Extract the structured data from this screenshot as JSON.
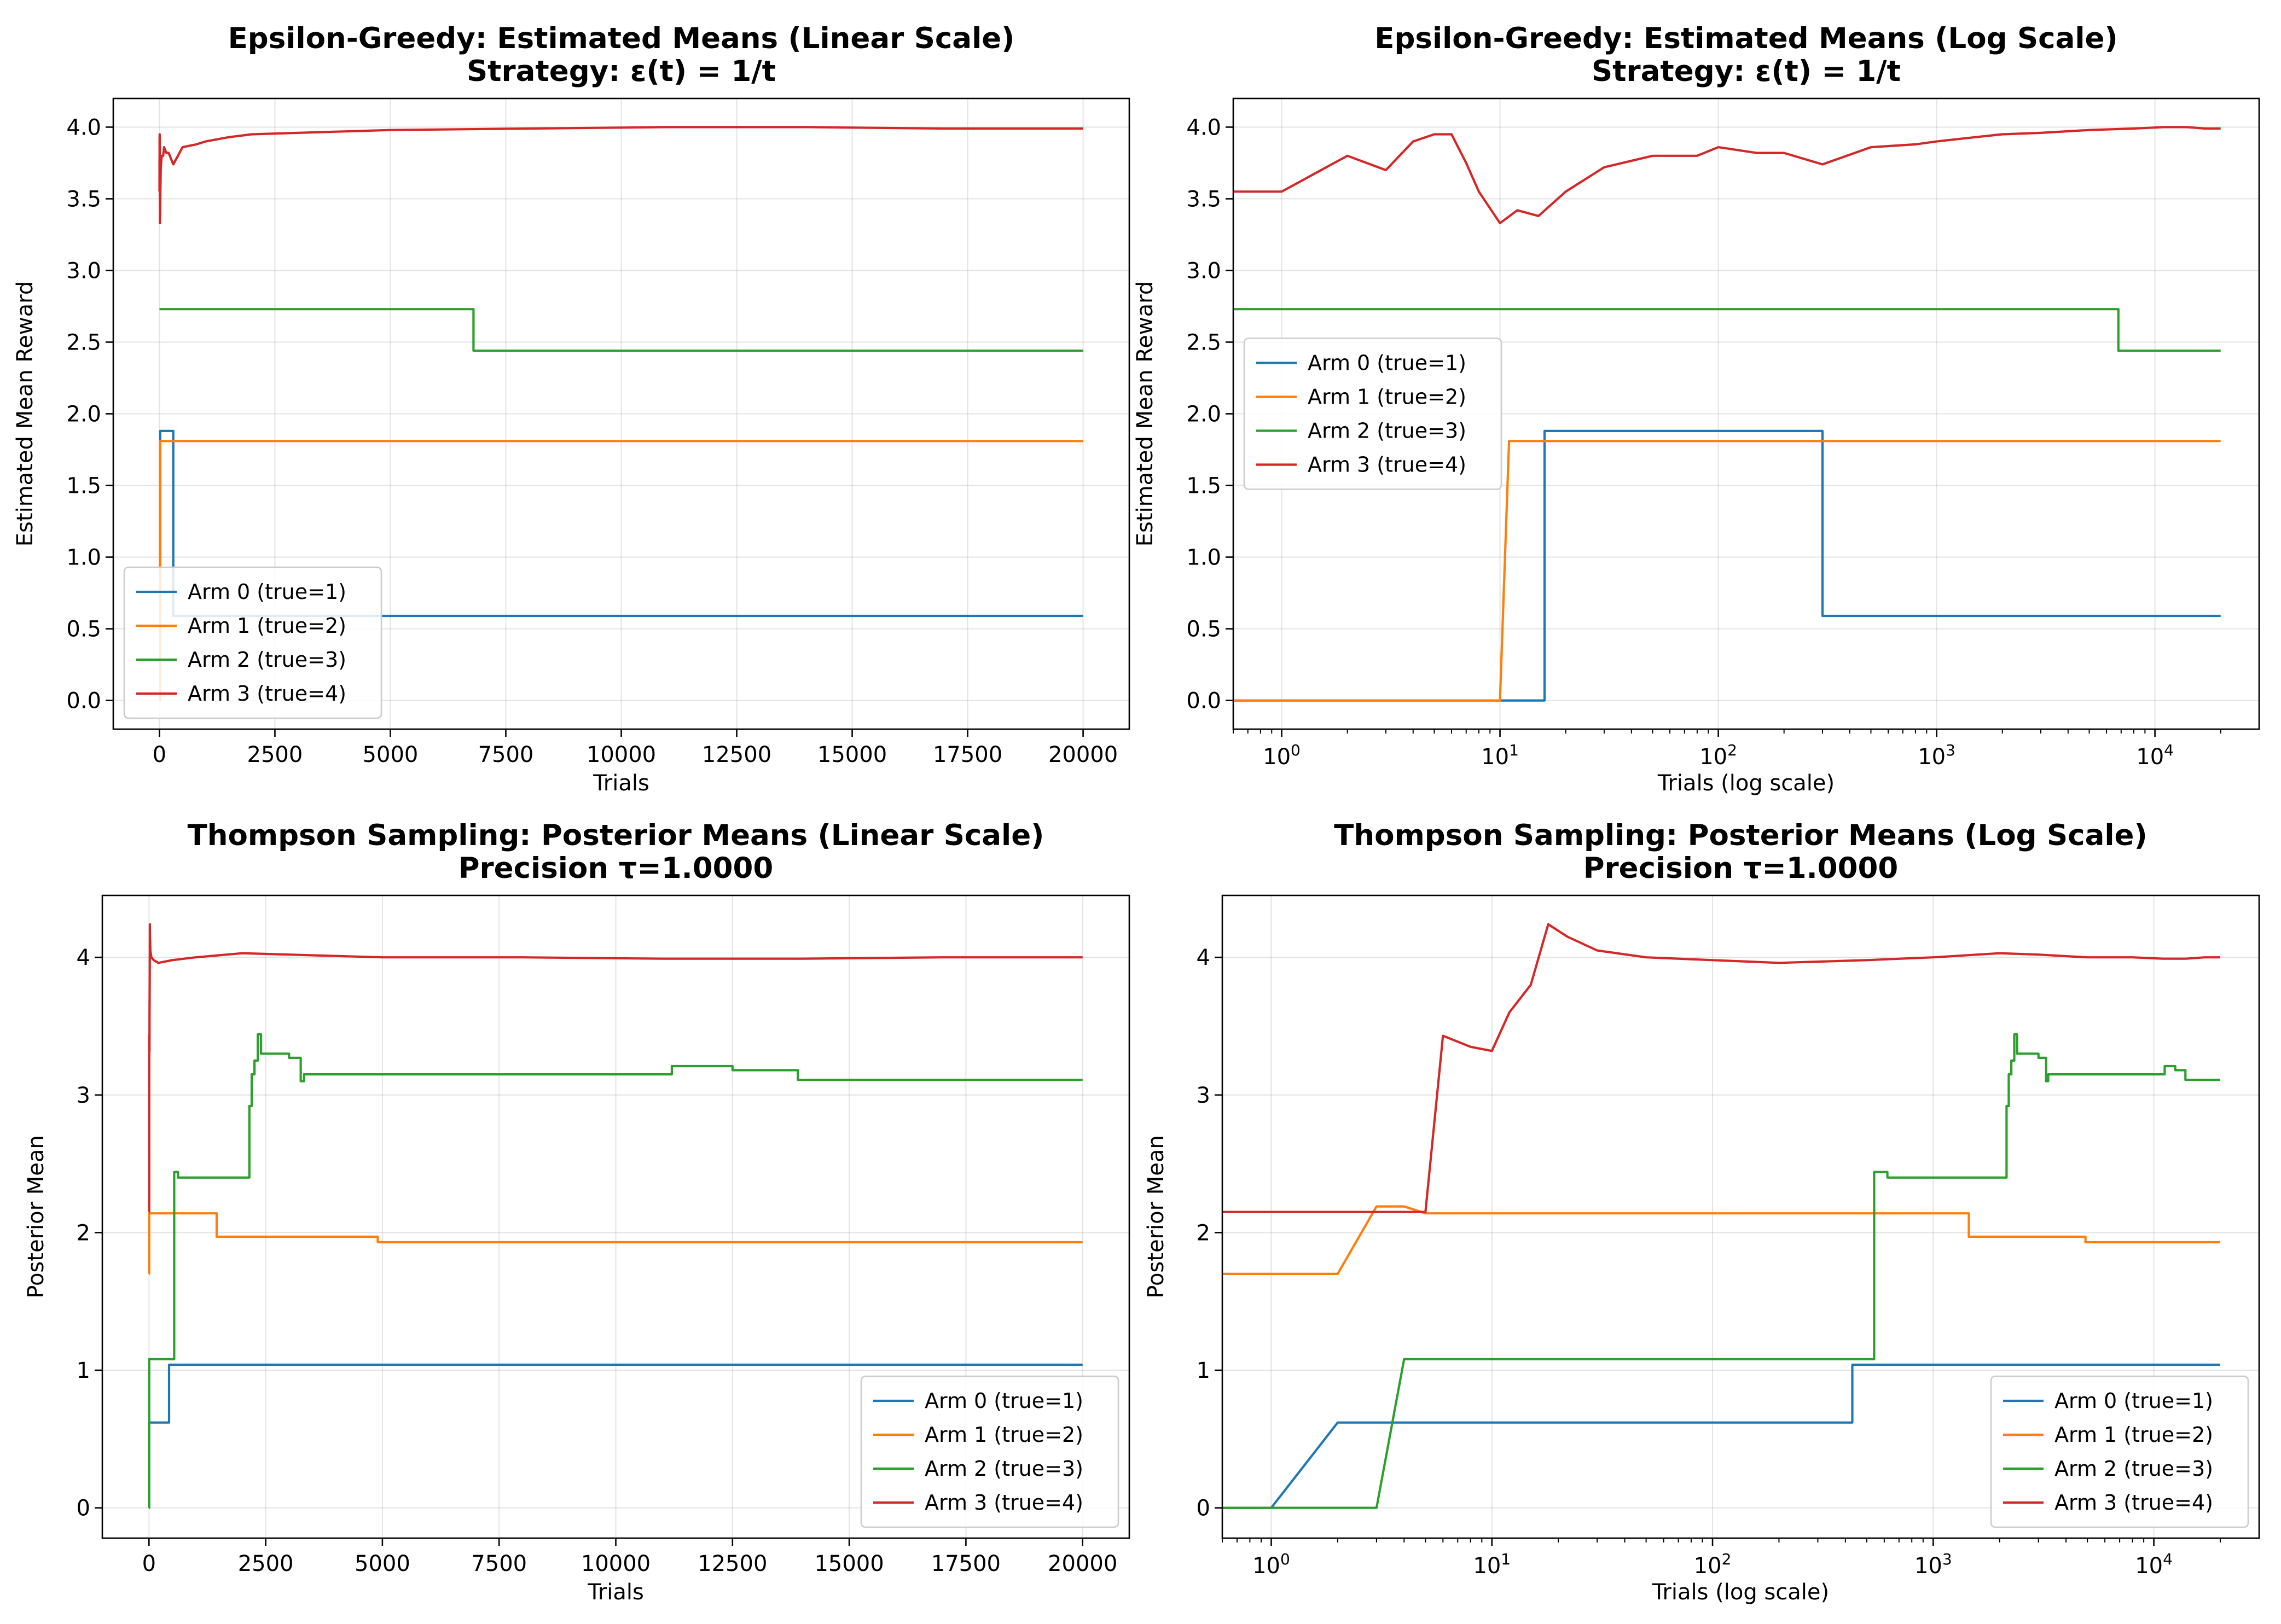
{
  "colors": {
    "arm0": "#1f77b4",
    "arm1": "#ff7f0e",
    "arm2": "#2ca02c",
    "arm3": "#d62728"
  },
  "chart_data": [
    {
      "id": "eg_linear",
      "type": "line",
      "title": [
        "Epsilon-Greedy: Estimated Means (Linear Scale)",
        "Strategy: ε(t) = 1/t"
      ],
      "xlabel": "Trials",
      "ylabel": "Estimated Mean Reward",
      "xscale": "linear",
      "xlim": [
        -1000,
        21000
      ],
      "ylim": [
        -0.2,
        4.2
      ],
      "xticks": [
        0,
        2500,
        5000,
        7500,
        10000,
        12500,
        15000,
        17500,
        20000
      ],
      "yticks": [
        0.0,
        0.5,
        1.0,
        1.5,
        2.0,
        2.5,
        3.0,
        3.5,
        4.0
      ],
      "ytick_decimals": 1,
      "grid": true,
      "legend_location": "lower left",
      "series": [
        {
          "name": "Arm 0 (true=1)",
          "color_key": "arm0",
          "step": true,
          "x": [
            1,
            16,
            300,
            20000
          ],
          "y": [
            0.0,
            1.88,
            0.59,
            0.59
          ]
        },
        {
          "name": "Arm 1 (true=2)",
          "color_key": "arm1",
          "step": true,
          "x": [
            1,
            11,
            20000
          ],
          "y": [
            0.0,
            1.81,
            1.81
          ]
        },
        {
          "name": "Arm 2 (true=3)",
          "color_key": "arm2",
          "step": true,
          "x": [
            1,
            6800,
            20000
          ],
          "y": [
            2.73,
            2.44,
            2.44
          ]
        },
        {
          "name": "Arm 3 (true=4)",
          "color_key": "arm3",
          "step": false,
          "x": [
            1,
            2,
            3,
            4,
            5,
            6,
            7,
            8,
            10,
            12,
            15,
            20,
            30,
            50,
            80,
            100,
            150,
            200,
            300,
            500,
            800,
            1000,
            1500,
            2000,
            3000,
            5000,
            8000,
            11000,
            14000,
            17000,
            20000
          ],
          "y": [
            3.55,
            3.8,
            3.7,
            3.9,
            3.95,
            3.93,
            3.7,
            3.45,
            3.33,
            3.42,
            3.38,
            3.55,
            3.72,
            3.8,
            3.8,
            3.86,
            3.82,
            3.82,
            3.74,
            3.86,
            3.88,
            3.9,
            3.93,
            3.95,
            3.96,
            3.98,
            3.99,
            4.0,
            4.0,
            3.99,
            3.99
          ]
        }
      ]
    },
    {
      "id": "eg_log",
      "type": "line",
      "title": [
        "Epsilon-Greedy: Estimated Means (Log Scale)",
        "Strategy: ε(t) = 1/t"
      ],
      "xlabel": "Trials (log scale)",
      "ylabel": "Estimated Mean Reward",
      "xscale": "log",
      "xlim": [
        0.6,
        30000
      ],
      "ylim": [
        -0.2,
        4.2
      ],
      "xticks": [
        1,
        10,
        100,
        1000,
        10000
      ],
      "yticks": [
        0.0,
        0.5,
        1.0,
        1.5,
        2.0,
        2.5,
        3.0,
        3.5,
        4.0
      ],
      "ytick_decimals": 1,
      "grid": true,
      "legend_location": "center left",
      "series": [
        {
          "name": "Arm 0 (true=1)",
          "color_key": "arm0",
          "step": true,
          "x": [
            0.6,
            16,
            300,
            20000
          ],
          "y": [
            0.0,
            1.88,
            0.59,
            0.59
          ]
        },
        {
          "name": "Arm 1 (true=2)",
          "color_key": "arm1",
          "step": false,
          "x": [
            0.6,
            10,
            11,
            20000
          ],
          "y": [
            0.0,
            0.0,
            1.81,
            1.81
          ]
        },
        {
          "name": "Arm 2 (true=3)",
          "color_key": "arm2",
          "step": true,
          "x": [
            0.6,
            6800,
            20000
          ],
          "y": [
            2.73,
            2.44,
            2.44
          ]
        },
        {
          "name": "Arm 3 (true=4)",
          "color_key": "arm3",
          "step": false,
          "x": [
            0.6,
            1,
            2,
            3,
            4,
            5,
            6,
            7,
            8,
            10,
            12,
            15,
            20,
            30,
            50,
            80,
            100,
            150,
            200,
            300,
            500,
            800,
            1000,
            1500,
            2000,
            3000,
            5000,
            8000,
            11000,
            14000,
            17000,
            20000
          ],
          "y": [
            3.55,
            3.55,
            3.8,
            3.7,
            3.9,
            3.95,
            3.95,
            3.75,
            3.55,
            3.33,
            3.42,
            3.38,
            3.55,
            3.72,
            3.8,
            3.8,
            3.86,
            3.82,
            3.82,
            3.74,
            3.86,
            3.88,
            3.9,
            3.93,
            3.95,
            3.96,
            3.98,
            3.99,
            4.0,
            4.0,
            3.99,
            3.99
          ]
        }
      ]
    },
    {
      "id": "ts_linear",
      "type": "line",
      "title": [
        "Thompson Sampling: Posterior Means (Linear Scale)",
        "Precision τ=1.0000"
      ],
      "xlabel": "Trials",
      "ylabel": "Posterior Mean",
      "xscale": "linear",
      "xlim": [
        -1000,
        21000
      ],
      "ylim": [
        -0.22,
        4.45
      ],
      "xticks": [
        0,
        2500,
        5000,
        7500,
        10000,
        12500,
        15000,
        17500,
        20000
      ],
      "yticks": [
        0,
        1,
        2,
        3,
        4
      ],
      "ytick_decimals": 0,
      "grid": true,
      "legend_location": "lower right",
      "series": [
        {
          "name": "Arm 0 (true=1)",
          "color_key": "arm0",
          "step": true,
          "x": [
            1,
            2,
            430,
            20000
          ],
          "y": [
            0.0,
            0.62,
            1.04,
            1.04
          ]
        },
        {
          "name": "Arm 1 (true=2)",
          "color_key": "arm1",
          "step": true,
          "x": [
            1,
            3,
            1450,
            4900,
            20000
          ],
          "y": [
            1.7,
            2.14,
            1.97,
            1.93,
            1.93
          ]
        },
        {
          "name": "Arm 2 (true=3)",
          "color_key": "arm2",
          "step": true,
          "x": [
            1,
            4,
            540,
            620,
            2150,
            2200,
            2260,
            2330,
            2400,
            3000,
            3250,
            3320,
            11200,
            12500,
            13900,
            20000
          ],
          "y": [
            0.0,
            1.08,
            2.44,
            2.4,
            2.92,
            3.15,
            3.25,
            3.44,
            3.3,
            3.27,
            3.1,
            3.15,
            3.21,
            3.18,
            3.11,
            3.11
          ]
        },
        {
          "name": "Arm 3 (true=4)",
          "color_key": "arm3",
          "step": false,
          "x": [
            1,
            4,
            5,
            6,
            8,
            10,
            12,
            15,
            18,
            22,
            30,
            50,
            100,
            200,
            500,
            1000,
            2000,
            3000,
            5000,
            8000,
            11000,
            14000,
            17000,
            20000
          ],
          "y": [
            2.15,
            2.15,
            2.15,
            3.43,
            3.35,
            3.32,
            3.6,
            3.8,
            4.24,
            4.15,
            4.05,
            4.0,
            3.98,
            3.96,
            3.98,
            4.0,
            4.03,
            4.02,
            4.0,
            4.0,
            3.99,
            3.99,
            4.0,
            4.0
          ]
        }
      ]
    },
    {
      "id": "ts_log",
      "type": "line",
      "title": [
        "Thompson Sampling: Posterior Means (Log Scale)",
        "Precision τ=1.0000"
      ],
      "xlabel": "Trials (log scale)",
      "ylabel": "Posterior Mean",
      "xscale": "log",
      "xlim": [
        0.6,
        30000
      ],
      "ylim": [
        -0.22,
        4.45
      ],
      "xticks": [
        1,
        10,
        100,
        1000,
        10000
      ],
      "yticks": [
        0,
        1,
        2,
        3,
        4
      ],
      "ytick_decimals": 0,
      "grid": true,
      "legend_location": "lower right",
      "series": [
        {
          "name": "Arm 0 (true=1)",
          "color_key": "arm0",
          "step": false,
          "x": [
            0.6,
            1,
            2,
            430,
            430,
            20000
          ],
          "y": [
            0.0,
            0.0,
            0.62,
            0.62,
            1.04,
            1.04
          ]
        },
        {
          "name": "Arm 1 (true=2)",
          "color_key": "arm1",
          "step": false,
          "x": [
            0.6,
            2,
            3,
            4,
            5,
            1450,
            1450,
            4900,
            4900,
            20000
          ],
          "y": [
            1.7,
            1.7,
            2.19,
            2.19,
            2.14,
            2.14,
            1.97,
            1.97,
            1.93,
            1.93
          ]
        },
        {
          "name": "Arm 2 (true=3)",
          "color_key": "arm2",
          "step": false,
          "x": [
            0.6,
            3,
            4,
            540,
            540,
            620,
            620,
            2150,
            2150,
            2200,
            2200,
            2260,
            2260,
            2330,
            2330,
            2400,
            2400,
            3000,
            3000,
            3250,
            3250,
            3320,
            3320,
            11200,
            11200,
            12500,
            12500,
            13900,
            13900,
            20000
          ],
          "y": [
            0.0,
            0.0,
            1.08,
            1.08,
            2.44,
            2.44,
            2.4,
            2.4,
            2.92,
            2.92,
            3.15,
            3.15,
            3.25,
            3.25,
            3.44,
            3.44,
            3.3,
            3.3,
            3.27,
            3.27,
            3.1,
            3.1,
            3.15,
            3.15,
            3.21,
            3.21,
            3.18,
            3.18,
            3.11,
            3.11
          ]
        },
        {
          "name": "Arm 3 (true=4)",
          "color_key": "arm3",
          "step": false,
          "x": [
            0.6,
            4,
            5,
            6,
            8,
            10,
            12,
            15,
            18,
            22,
            30,
            50,
            100,
            200,
            500,
            1000,
            2000,
            3000,
            5000,
            8000,
            11000,
            14000,
            17000,
            20000
          ],
          "y": [
            2.15,
            2.15,
            2.15,
            3.43,
            3.35,
            3.32,
            3.6,
            3.8,
            4.24,
            4.15,
            4.05,
            4.0,
            3.98,
            3.96,
            3.98,
            4.0,
            4.03,
            4.02,
            4.0,
            4.0,
            3.99,
            3.99,
            4.0,
            4.0
          ]
        }
      ]
    }
  ]
}
